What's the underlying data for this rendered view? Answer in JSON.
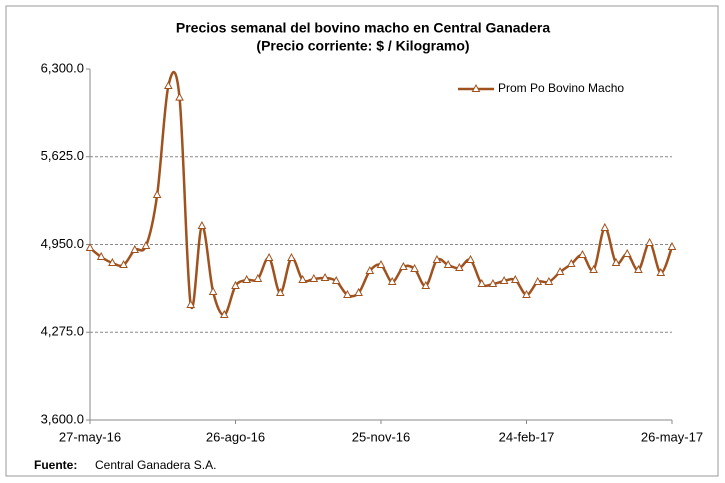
{
  "chart_data": {
    "type": "line",
    "title": "Precios semanal del bovino macho en Central Ganadera",
    "subtitle": "(Precio corriente: $ / Kilogramo)",
    "source_label": "Fuente:",
    "source_text": "Central Ganadera S.A.",
    "categories": [
      "27-may-16",
      null,
      null,
      null,
      null,
      null,
      null,
      null,
      null,
      null,
      null,
      null,
      null,
      "26-ago-16",
      null,
      null,
      null,
      null,
      null,
      null,
      null,
      null,
      null,
      null,
      null,
      null,
      "25-nov-16",
      null,
      null,
      null,
      null,
      null,
      null,
      null,
      null,
      null,
      null,
      null,
      null,
      "24-feb-17",
      null,
      null,
      null,
      null,
      null,
      null,
      null,
      null,
      null,
      null,
      null,
      null,
      "26-may-17"
    ],
    "series": [
      {
        "name": "Prom Po Bovino Macho",
        "color": "#a0521e",
        "values": [
          4923,
          4854,
          4808,
          4792,
          4908,
          4938,
          5331,
          6169,
          6080,
          4485,
          5092,
          4585,
          4408,
          4631,
          4677,
          4685,
          4846,
          4577,
          4846,
          4677,
          4685,
          4692,
          4669,
          4562,
          4577,
          4746,
          4792,
          4662,
          4777,
          4762,
          4631,
          4831,
          4792,
          4769,
          4831,
          4646,
          4646,
          4669,
          4677,
          4562,
          4662,
          4662,
          4738,
          4800,
          4869,
          4754,
          5077,
          4808,
          4877,
          4754,
          4962,
          4731,
          4931
        ]
      }
    ],
    "ylim": [
      3600,
      6300
    ],
    "yticks": [
      {
        "value": 3600,
        "label": "3,600.0"
      },
      {
        "value": 4275,
        "label": "4,275.0"
      },
      {
        "value": 4950,
        "label": "4,950.0"
      },
      {
        "value": 5625,
        "label": "5,625.0"
      },
      {
        "value": 6300,
        "label": "6,300.0"
      }
    ],
    "grid": true,
    "legend": "top-right"
  }
}
